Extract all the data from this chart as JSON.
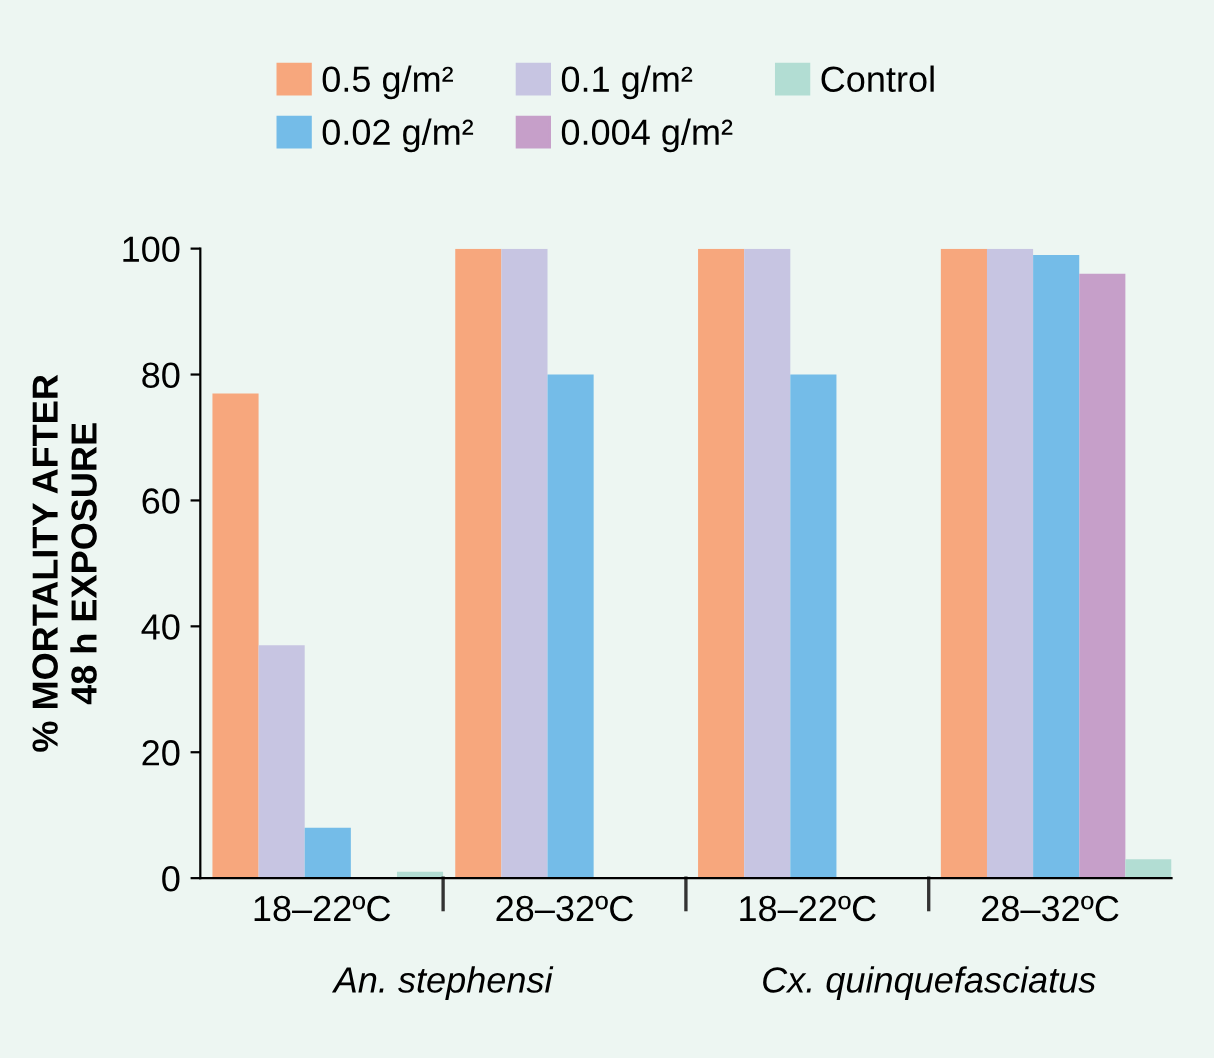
{
  "chart_data": {
    "type": "bar",
    "ylabel": "% MORTALITY AFTER\n48 h EXPOSURE",
    "categories": [
      "18–22ºC",
      "28–32ºC",
      "18–22ºC",
      "28–32ºC"
    ],
    "series": [
      {
        "name": "0.5 g/m²",
        "color": "#f7a77d",
        "values": [
          77,
          100,
          100,
          100
        ]
      },
      {
        "name": "0.1 g/m²",
        "color": "#c7c5e2",
        "values": [
          37,
          100,
          100,
          100
        ]
      },
      {
        "name": "0.02 g/m²",
        "color": "#74bce8",
        "values": [
          8,
          80,
          80,
          99
        ]
      },
      {
        "name": "0.004 g/m²",
        "color": "#c69fc9",
        "values": [
          null,
          null,
          null,
          96
        ]
      },
      {
        "name": "Control",
        "color": "#b2ddd3",
        "values": [
          1,
          null,
          null,
          3
        ]
      }
    ],
    "annotations": [
      "An. stephensi",
      "Cx. quinquefasciatus"
    ],
    "ylim": [
      0,
      100
    ],
    "yticks": [
      0,
      20,
      40,
      60,
      80,
      100
    ],
    "grid": false,
    "legend": "top"
  }
}
